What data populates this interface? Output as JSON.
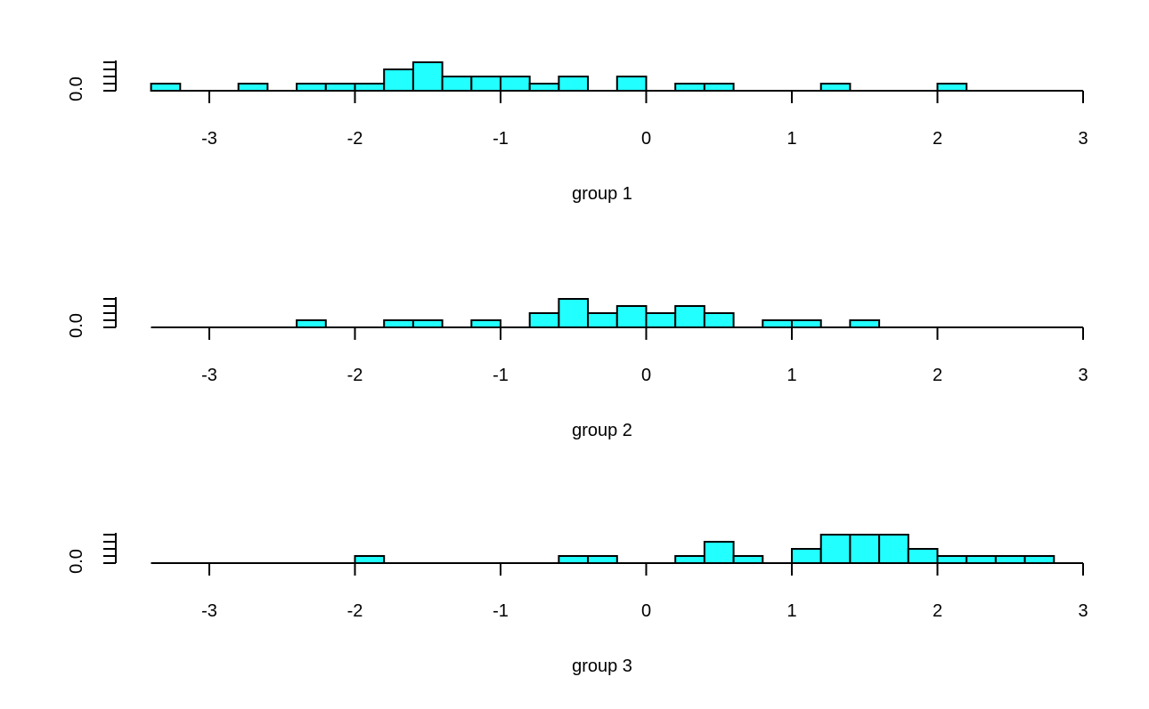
{
  "colors": {
    "bar_fill": "#22ffff",
    "bar_stroke": "#000000",
    "axis": "#000000"
  },
  "chart_data": [
    {
      "type": "bar",
      "xlabel": "group 1",
      "ylabel_tick": "0.0",
      "xlim": [
        -3.4,
        3
      ],
      "x_ticks": [
        -3,
        -2,
        -1,
        0,
        1,
        2,
        3
      ],
      "bin_width": 0.2,
      "bin_start": -3.4,
      "heights": [
        1,
        0,
        0,
        1,
        0,
        1,
        1,
        1,
        3,
        4,
        2,
        2,
        2,
        1,
        2,
        0,
        2,
        0,
        1,
        1,
        0,
        0,
        0,
        1,
        0,
        0,
        0,
        1,
        0,
        0,
        0
      ],
      "ymax": 4.5
    },
    {
      "type": "bar",
      "xlabel": "group 2",
      "ylabel_tick": "0.0",
      "xlim": [
        -3.4,
        3
      ],
      "x_ticks": [
        -3,
        -2,
        -1,
        0,
        1,
        2,
        3
      ],
      "bin_width": 0.2,
      "bin_start": -3.4,
      "heights": [
        0,
        0,
        0,
        0,
        0,
        1,
        0,
        0,
        1,
        1,
        0,
        1,
        0,
        2,
        4,
        2,
        3,
        2,
        3,
        2,
        0,
        1,
        1,
        0,
        1,
        0,
        0,
        0,
        0,
        0,
        0
      ],
      "ymax": 4.5
    },
    {
      "type": "bar",
      "xlabel": "group 3",
      "ylabel_tick": "0.0",
      "xlim": [
        -3.4,
        3
      ],
      "x_ticks": [
        -3,
        -2,
        -1,
        0,
        1,
        2,
        3
      ],
      "bin_width": 0.2,
      "bin_start": -3.4,
      "heights": [
        0,
        0,
        0,
        0,
        0,
        0,
        0,
        1,
        0,
        0,
        0,
        0,
        0,
        0,
        1,
        1,
        0,
        0,
        1,
        3,
        1,
        0,
        2,
        4,
        4,
        4,
        2,
        1,
        1,
        1,
        1
      ],
      "ymax": 4.5
    }
  ]
}
